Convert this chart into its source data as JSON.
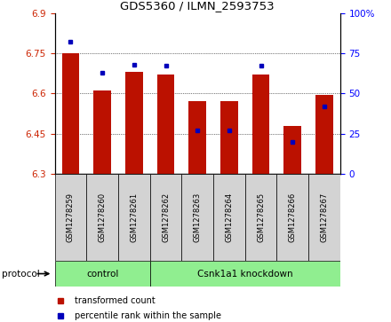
{
  "title": "GDS5360 / ILMN_2593753",
  "samples": [
    "GSM1278259",
    "GSM1278260",
    "GSM1278261",
    "GSM1278262",
    "GSM1278263",
    "GSM1278264",
    "GSM1278265",
    "GSM1278266",
    "GSM1278267"
  ],
  "red_values": [
    6.75,
    6.61,
    6.68,
    6.67,
    6.57,
    6.57,
    6.67,
    6.48,
    6.595
  ],
  "blue_values": [
    82,
    63,
    68,
    67,
    27,
    27,
    67,
    20,
    42
  ],
  "ylim_left": [
    6.3,
    6.9
  ],
  "ylim_right": [
    0,
    100
  ],
  "yticks_left": [
    6.3,
    6.45,
    6.6,
    6.75,
    6.9
  ],
  "yticks_right": [
    0,
    25,
    50,
    75,
    100
  ],
  "control_count": 3,
  "control_label": "control",
  "knockdown_label": "Csnk1a1 knockdown",
  "protocol_label": "protocol",
  "legend_red": "transformed count",
  "legend_blue": "percentile rank within the sample",
  "bar_color": "#BB1100",
  "dot_color": "#0000BB",
  "bar_width": 0.55,
  "base_value": 6.3,
  "group_bg_color": "#d3d3d3",
  "protocol_bg_color": "#90EE90"
}
